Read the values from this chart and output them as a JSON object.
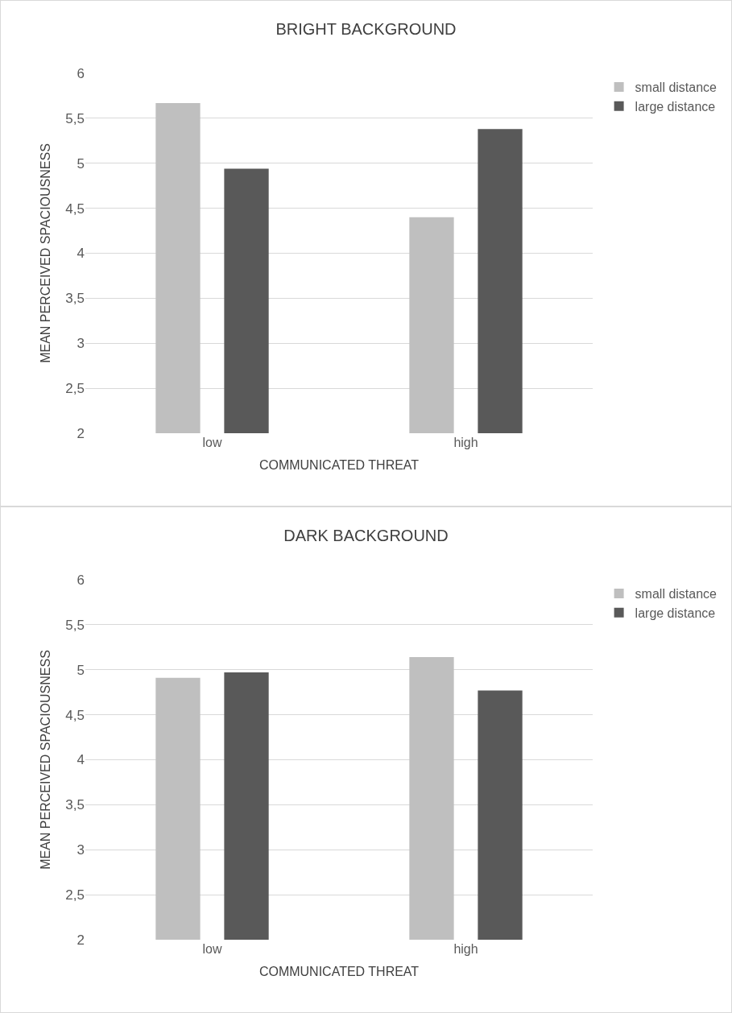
{
  "chart_data": [
    {
      "type": "bar",
      "title": "BRIGHT BACKGROUND",
      "xlabel": "COMMUNICATED THREAT",
      "ylabel": "MEAN PERCEIVED SPACIOUSNESS",
      "categories": [
        "low",
        "high"
      ],
      "series": [
        {
          "name": "small distance",
          "color": "#bfbfbf",
          "values": [
            5.67,
            4.4
          ]
        },
        {
          "name": "large distance",
          "color": "#595959",
          "values": [
            4.94,
            5.38
          ]
        }
      ],
      "ylim": [
        2,
        6
      ],
      "yticks": [
        2,
        {
          "value": 2.5,
          "label": "2,5"
        },
        3,
        {
          "value": 3.5,
          "label": "3,5"
        },
        4,
        {
          "value": 4.5,
          "label": "4,5"
        },
        5,
        {
          "value": 5.5,
          "label": "5,5"
        },
        6
      ],
      "grid": "y",
      "legend": "top right"
    },
    {
      "type": "bar",
      "title": "DARK BACKGROUND",
      "xlabel": "COMMUNICATED THREAT",
      "ylabel": "MEAN PERCEIVED SPACIOUSNESS",
      "categories": [
        "low",
        "high"
      ],
      "series": [
        {
          "name": "small distance",
          "color": "#bfbfbf",
          "values": [
            4.91,
            5.14
          ]
        },
        {
          "name": "large distance",
          "color": "#595959",
          "values": [
            4.97,
            4.77
          ]
        }
      ],
      "ylim": [
        2,
        6
      ],
      "yticks": [
        2,
        {
          "value": 2.5,
          "label": "2,5"
        },
        3,
        {
          "value": 3.5,
          "label": "3,5"
        },
        4,
        {
          "value": 4.5,
          "label": "4,5"
        },
        5,
        {
          "value": 5.5,
          "label": "5,5"
        },
        6
      ],
      "grid": "y",
      "legend": "top right"
    }
  ]
}
